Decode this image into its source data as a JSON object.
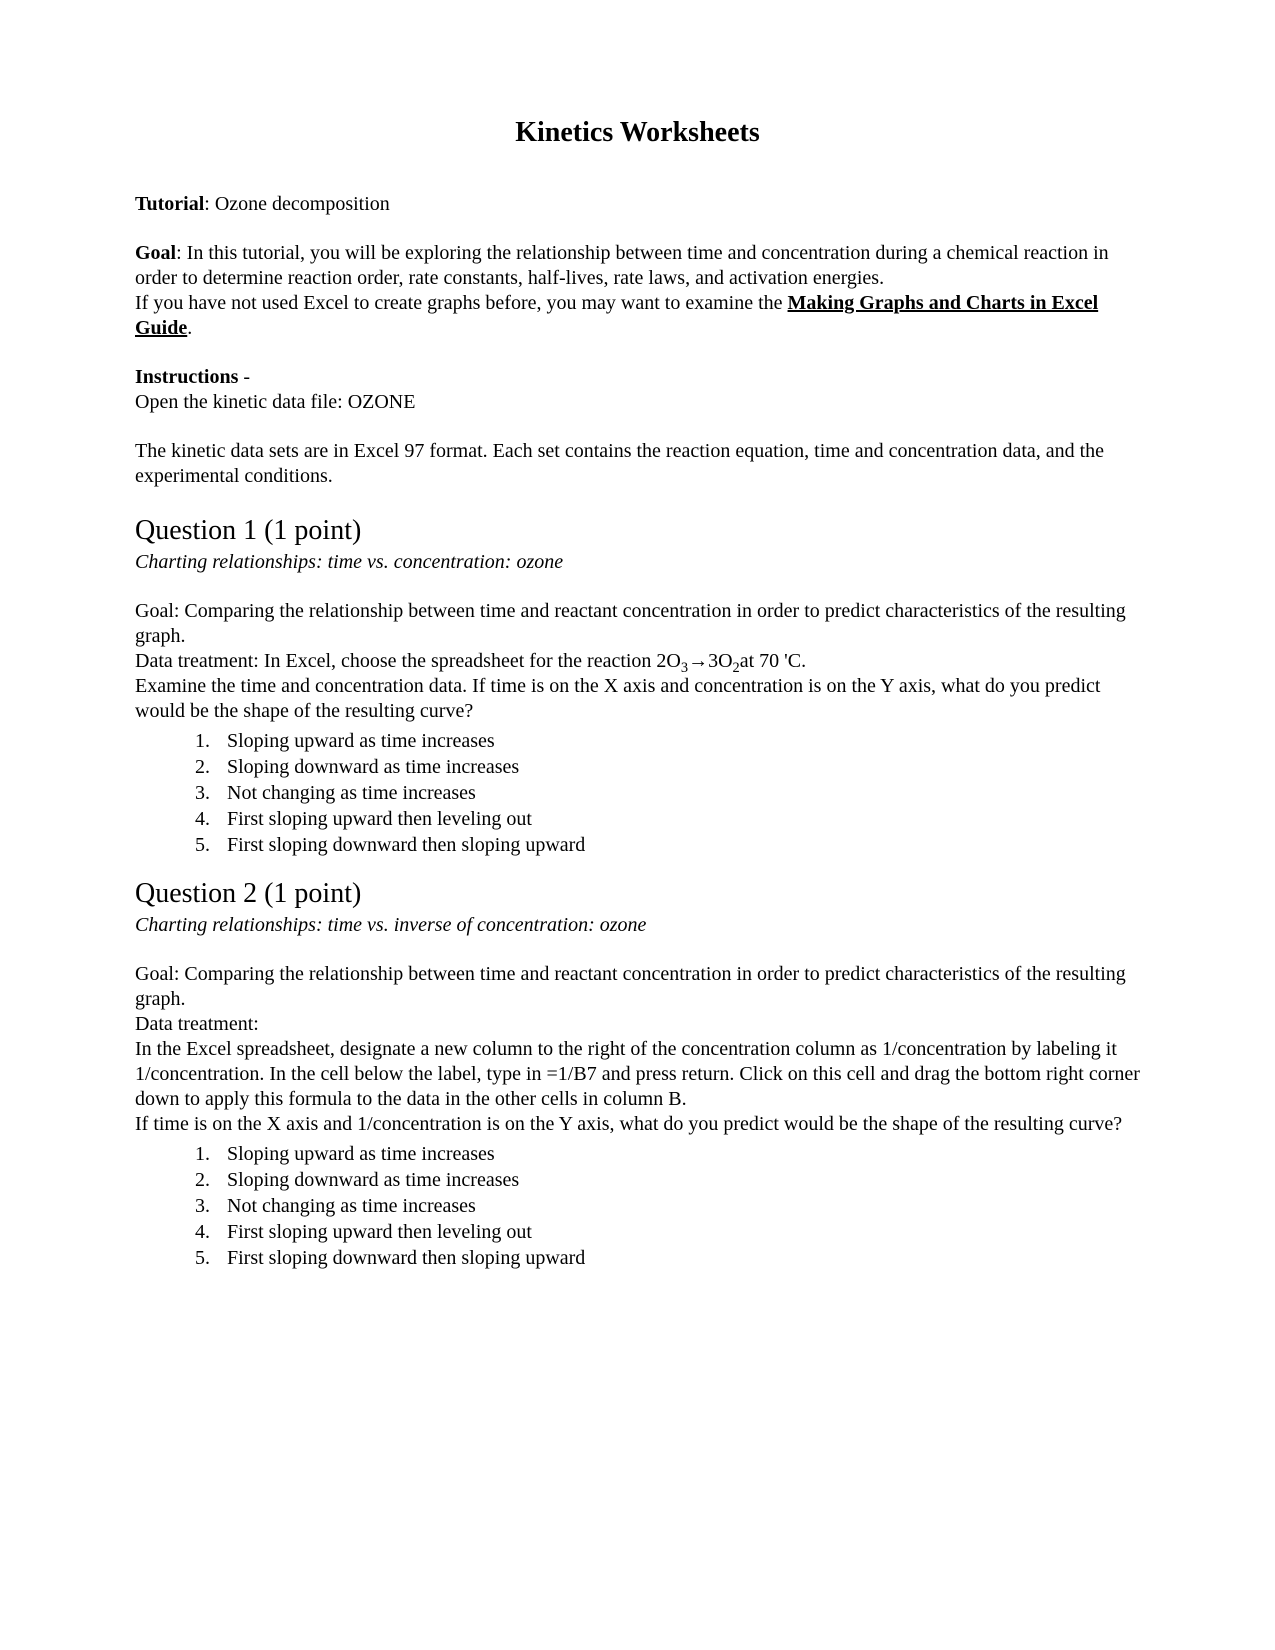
{
  "title": "Kinetics Worksheets",
  "tutorial_label": "Tutorial",
  "tutorial_text": ": Ozone decomposition",
  "goal_label": "Goal",
  "goal_text_1": ": In this tutorial, you will be exploring the relationship between time and concentration during a chemical reaction in order to determine reaction order, rate constants, half-lives, rate laws, and activation energies.",
  "goal_text_2a": "If you have not used Excel to create graphs before, you may want to examine the ",
  "goal_link": "Making Graphs and Charts in Excel Guide",
  "goal_text_2b": ".",
  "instructions_label": "Instructions",
  "instructions_dash": " -",
  "instructions_line": "Open the kinetic data file: OZONE",
  "format_note": "The kinetic data sets are in Excel 97 format. Each set contains the reaction equation, time and concentration data, and the experimental conditions.",
  "q1": {
    "heading": "Question 1  (1 point)",
    "subtitle": "Charting relationships: time vs. concentration: ozone",
    "goal": "Goal: Comparing the relationship between time and reactant concentration in order to predict characteristics of the resulting graph.",
    "data_treatment_pre": "Data treatment: In Excel, choose the spreadsheet for the reaction 2O",
    "sub1": "3",
    "arrow": "→",
    "mid": "3O",
    "sub2": "2",
    "post": "at 70 'C.",
    "prompt": "Examine the time and concentration data. If time is on the X axis and concentration is on the Y axis, what do you predict would be the shape of the resulting curve?",
    "options": [
      "Sloping upward as time increases",
      "Sloping downward as time increases",
      "Not changing as time increases",
      "First sloping upward then leveling out",
      "First sloping downward then sloping upward"
    ]
  },
  "q2": {
    "heading": "Question 2  (1 point)",
    "subtitle": "Charting relationships: time vs. inverse of concentration: ozone",
    "goal": "Goal: Comparing the relationship between time and reactant concentration in order to predict characteristics of the resulting graph.",
    "data_treatment_label": "Data treatment:",
    "data_treatment_body": "In the Excel spreadsheet, designate a new column to the right of the concentration column as 1/concentration by labeling it 1/concentration. In the cell below the label, type in =1/B7 and press return. Click on this cell and drag the bottom right corner down to apply this formula to the data in the other cells in column B.",
    "prompt": "If time is on the X axis and 1/concentration is on the Y axis, what do you predict would be the shape of the resulting curve?",
    "options": [
      "Sloping upward as time increases",
      "Sloping downward as time increases",
      "Not changing as time increases",
      "First sloping upward then leveling out",
      "First sloping downward then sloping upward"
    ]
  }
}
